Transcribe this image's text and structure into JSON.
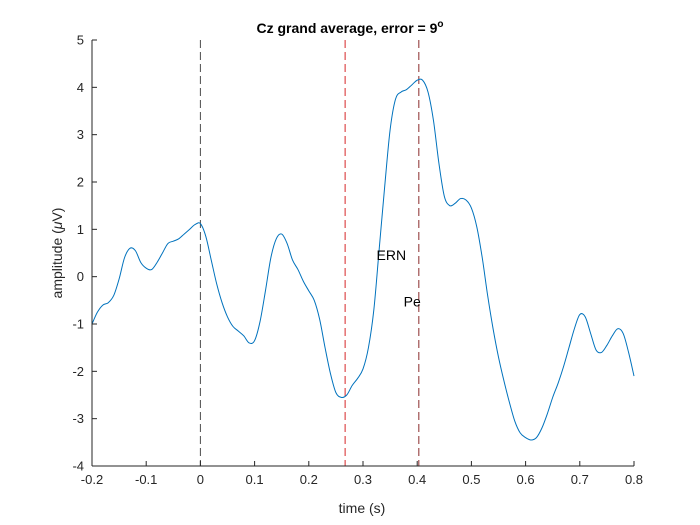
{
  "chart_data": {
    "type": "line",
    "title": "Cz grand average, error = 9",
    "title_superscript": "o",
    "xlabel": "time (s)",
    "ylabel_prefix": "amplitude (",
    "ylabel_mu": "μ",
    "ylabel_suffix": "V)",
    "xlim": [
      -0.2,
      0.8
    ],
    "ylim": [
      -4,
      5
    ],
    "xticks": [
      -0.2,
      -0.1,
      0,
      0.1,
      0.2,
      0.3,
      0.4,
      0.5,
      0.6,
      0.7,
      0.8
    ],
    "xtick_labels": [
      "-0.2",
      "-0.1",
      "0",
      "0.1",
      "0.2",
      "0.3",
      "0.4",
      "0.5",
      "0.6",
      "0.7",
      "0.8"
    ],
    "yticks": [
      -4,
      -3,
      -2,
      -1,
      0,
      1,
      2,
      3,
      4,
      5
    ],
    "ytick_labels": [
      "-4",
      "-3",
      "-2",
      "-1",
      "0",
      "1",
      "2",
      "3",
      "4",
      "5"
    ],
    "grid": false,
    "series": [
      {
        "color": "#0072BD",
        "x": [
          -0.2,
          -0.19,
          -0.18,
          -0.17,
          -0.16,
          -0.15,
          -0.14,
          -0.13,
          -0.12,
          -0.11,
          -0.1,
          -0.09,
          -0.08,
          -0.07,
          -0.06,
          -0.05,
          -0.04,
          -0.03,
          -0.02,
          -0.01,
          0.0,
          0.01,
          0.02,
          0.03,
          0.04,
          0.05,
          0.06,
          0.07,
          0.08,
          0.09,
          0.1,
          0.11,
          0.12,
          0.13,
          0.14,
          0.15,
          0.16,
          0.17,
          0.18,
          0.19,
          0.2,
          0.21,
          0.22,
          0.23,
          0.24,
          0.25,
          0.26,
          0.27,
          0.28,
          0.29,
          0.3,
          0.31,
          0.32,
          0.33,
          0.34,
          0.35,
          0.36,
          0.37,
          0.38,
          0.39,
          0.4,
          0.41,
          0.42,
          0.43,
          0.44,
          0.45,
          0.46,
          0.47,
          0.48,
          0.49,
          0.5,
          0.51,
          0.52,
          0.53,
          0.54,
          0.55,
          0.56,
          0.57,
          0.58,
          0.59,
          0.6,
          0.61,
          0.62,
          0.63,
          0.64,
          0.65,
          0.66,
          0.67,
          0.68,
          0.69,
          0.7,
          0.71,
          0.72,
          0.73,
          0.74,
          0.75,
          0.76,
          0.77,
          0.78,
          0.79,
          0.8
        ],
        "y": [
          -1.0,
          -0.75,
          -0.6,
          -0.55,
          -0.4,
          -0.05,
          0.4,
          0.6,
          0.55,
          0.3,
          0.18,
          0.15,
          0.3,
          0.5,
          0.7,
          0.75,
          0.8,
          0.9,
          1.0,
          1.1,
          1.12,
          0.85,
          0.35,
          -0.15,
          -0.55,
          -0.85,
          -1.05,
          -1.15,
          -1.25,
          -1.4,
          -1.35,
          -0.95,
          -0.3,
          0.4,
          0.8,
          0.9,
          0.7,
          0.35,
          0.15,
          -0.1,
          -0.3,
          -0.5,
          -0.9,
          -1.5,
          -2.05,
          -2.45,
          -2.55,
          -2.5,
          -2.3,
          -2.15,
          -1.95,
          -1.5,
          -0.7,
          0.6,
          1.9,
          3.1,
          3.75,
          3.9,
          3.95,
          4.05,
          4.15,
          4.15,
          3.9,
          3.3,
          2.4,
          1.7,
          1.5,
          1.55,
          1.65,
          1.62,
          1.45,
          1.05,
          0.4,
          -0.4,
          -1.1,
          -1.7,
          -2.2,
          -2.65,
          -3.05,
          -3.3,
          -3.4,
          -3.45,
          -3.4,
          -3.2,
          -2.9,
          -2.55,
          -2.25,
          -1.9,
          -1.5,
          -1.1,
          -0.8,
          -0.85,
          -1.2,
          -1.55,
          -1.6,
          -1.45,
          -1.25,
          -1.1,
          -1.2,
          -1.6,
          -2.1
        ]
      }
    ],
    "vlines": [
      {
        "x": 0.0,
        "color": "#4d4d4d"
      },
      {
        "x": 0.267,
        "color": "#d62728"
      },
      {
        "x": 0.403,
        "color": "#8b2c2c"
      }
    ],
    "annotations": [
      {
        "text": "ERN",
        "x": 0.325,
        "y": 0.43
      },
      {
        "text": "Pe",
        "x": 0.375,
        "y": -0.55
      }
    ]
  }
}
